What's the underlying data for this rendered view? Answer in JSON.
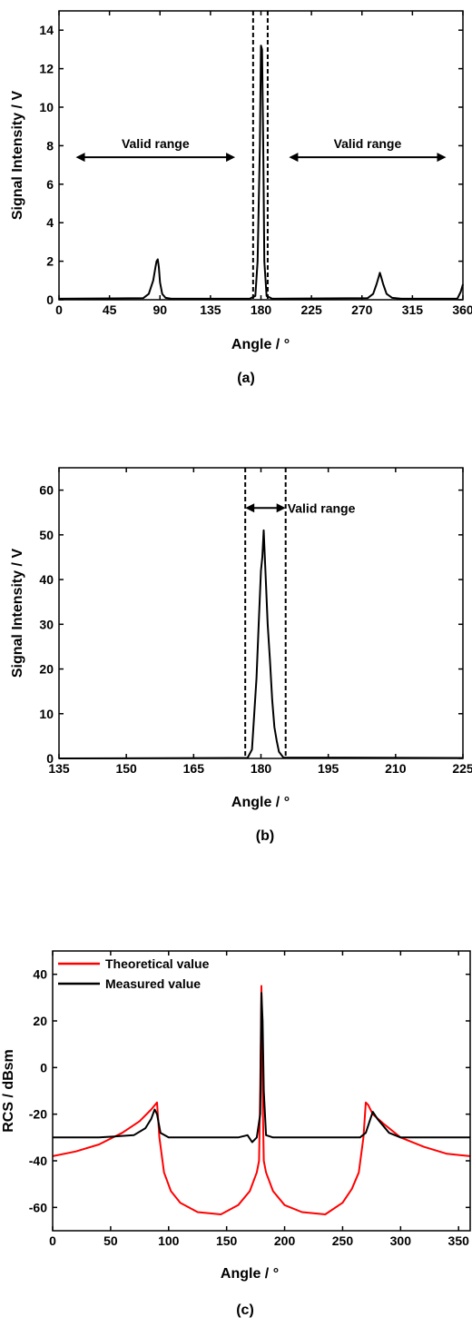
{
  "chart_data": [
    {
      "panel": "a",
      "type": "line",
      "caption": "(a)",
      "xlabel": "Angle / °",
      "ylabel": "Signal Intensity / V",
      "xlim": [
        0,
        360
      ],
      "ylim": [
        0,
        15
      ],
      "xticks": [
        0,
        45,
        90,
        135,
        180,
        225,
        270,
        315,
        360
      ],
      "yticks": [
        0,
        2,
        4,
        6,
        8,
        10,
        12,
        14
      ],
      "series": [
        {
          "color": "#000000",
          "x": [
            0,
            75,
            80,
            84,
            86,
            87,
            88,
            89,
            90,
            92,
            95,
            100,
            170,
            175,
            177,
            179,
            180,
            181,
            182,
            183,
            185,
            190,
            275,
            280,
            283,
            285,
            286,
            287,
            289,
            292,
            297,
            305,
            355,
            358,
            360
          ],
          "y": [
            0.05,
            0.08,
            0.3,
            1.0,
            1.7,
            2.0,
            2.1,
            1.7,
            0.9,
            0.3,
            0.1,
            0.05,
            0.05,
            0.2,
            2.0,
            8.0,
            13.2,
            13.0,
            8.0,
            2.0,
            0.2,
            0.05,
            0.08,
            0.3,
            0.8,
            1.2,
            1.4,
            1.2,
            0.8,
            0.3,
            0.1,
            0.05,
            0.05,
            0.4,
            0.8
          ]
        }
      ],
      "vlines": [
        173,
        186
      ],
      "annotations": [
        {
          "text": "Valid range",
          "x_range": [
            15,
            157
          ],
          "y": 7.4
        },
        {
          "text": "Valid range",
          "x_range": [
            205,
            345
          ],
          "y": 7.4
        }
      ]
    },
    {
      "panel": "b",
      "type": "line",
      "caption": "(b)",
      "xlabel": "Angle / °",
      "ylabel": "Signal Intensity / V",
      "xlim": [
        135,
        225
      ],
      "ylim": [
        0,
        65
      ],
      "xticks": [
        135,
        150,
        165,
        180,
        195,
        210,
        225
      ],
      "yticks": [
        0,
        10,
        20,
        30,
        40,
        50,
        60
      ],
      "series": [
        {
          "color": "#000000",
          "x": [
            135,
            177,
            178,
            179,
            179.5,
            180,
            180.3,
            180.6,
            181,
            181.5,
            182,
            182.5,
            183,
            183.5,
            184,
            185,
            225
          ],
          "y": [
            0,
            0.1,
            2.0,
            18.0,
            30.0,
            42.0,
            45.0,
            51.0,
            42.0,
            30.0,
            22.0,
            13.0,
            7.0,
            4.0,
            1.5,
            0.2,
            0.1
          ]
        }
      ],
      "vlines": [
        176.5,
        185.5
      ],
      "annotations": [
        {
          "text": "Valid range",
          "x_range": [
            176.5,
            185.5
          ],
          "y": 56
        }
      ]
    },
    {
      "panel": "c",
      "type": "line",
      "caption": "(c)",
      "xlabel": "Angle / °",
      "ylabel": "RCS / dBsm",
      "xlim": [
        0,
        360
      ],
      "ylim": [
        -70,
        50
      ],
      "xticks": [
        0,
        50,
        100,
        150,
        200,
        250,
        300,
        350
      ],
      "yticks": [
        -60,
        -40,
        -20,
        0,
        20,
        40
      ],
      "legend": "top-left",
      "series": [
        {
          "name": "Theoretical value",
          "color": "#ff0000",
          "x": [
            0,
            20,
            40,
            60,
            75,
            85,
            90,
            92,
            96,
            102,
            110,
            125,
            145,
            160,
            170,
            176,
            178,
            179,
            180,
            181,
            182,
            184,
            190,
            200,
            215,
            235,
            250,
            258,
            264,
            268,
            270,
            272,
            276,
            285,
            300,
            320,
            340,
            360
          ],
          "y": [
            -38,
            -36,
            -33,
            -28,
            -23,
            -18,
            -15,
            -30,
            -45,
            -53,
            -58,
            -62,
            -63,
            -59,
            -53,
            -45,
            -40,
            -10,
            35,
            -10,
            -40,
            -45,
            -53,
            -59,
            -62,
            -63,
            -58,
            -52,
            -45,
            -30,
            -15,
            -16,
            -20,
            -24,
            -30,
            -34,
            -37,
            -38
          ]
        },
        {
          "name": "Measured value",
          "color": "#000000",
          "x": [
            0,
            40,
            70,
            80,
            85,
            88,
            90,
            93,
            100,
            160,
            168,
            172,
            176,
            179,
            180,
            181,
            182,
            184,
            190,
            265,
            270,
            274,
            276,
            280,
            290,
            300,
            360
          ],
          "y": [
            -30,
            -30,
            -29,
            -26,
            -22,
            -18,
            -20,
            -28,
            -30,
            -30,
            -29,
            -32,
            -30,
            -20,
            32,
            20,
            -10,
            -29,
            -30,
            -30,
            -28,
            -22,
            -19,
            -22,
            -28,
            -30,
            -30
          ]
        }
      ]
    }
  ]
}
